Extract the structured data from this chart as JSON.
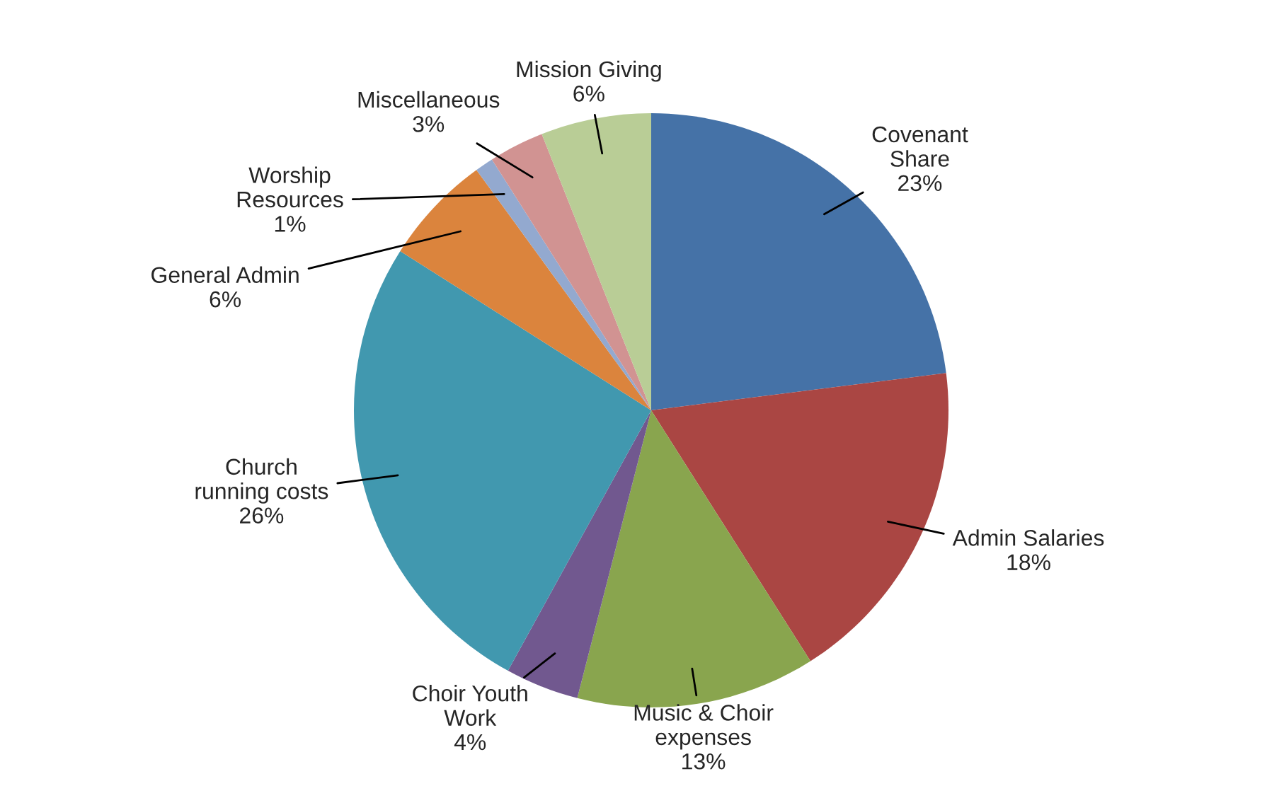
{
  "chart_data": {
    "type": "pie",
    "categories": [
      "Covenant\nShare",
      "Admin Salaries",
      "Music & Choir\nexpenses",
      "Choir Youth\nWork",
      "Church\nrunning costs",
      "General Admin",
      "Worship\nResources",
      "Miscellaneous",
      "Mission Giving"
    ],
    "values": [
      23,
      18,
      13,
      4,
      26,
      6,
      1,
      3,
      6
    ],
    "value_labels": [
      "23%",
      "18%",
      "13%",
      "4%",
      "26%",
      "6%",
      "1%",
      "3%",
      "6%"
    ],
    "colors": [
      "#4572a7",
      "#aa4643",
      "#89a54e",
      "#71588f",
      "#4198af",
      "#db843d",
      "#93a9cf",
      "#d19392",
      "#b9cd96"
    ],
    "legend": false
  }
}
